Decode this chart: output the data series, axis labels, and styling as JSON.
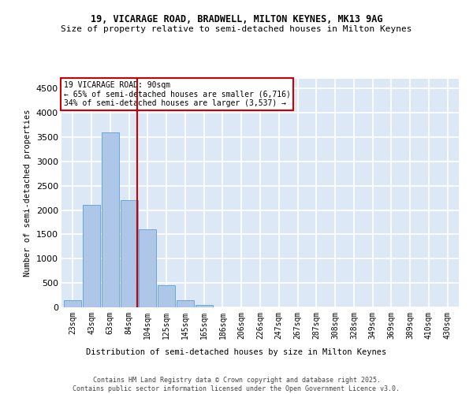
{
  "title1": "19, VICARAGE ROAD, BRADWELL, MILTON KEYNES, MK13 9AG",
  "title2": "Size of property relative to semi-detached houses in Milton Keynes",
  "xlabel": "Distribution of semi-detached houses by size in Milton Keynes",
  "ylabel": "Number of semi-detached properties",
  "footer": "Contains HM Land Registry data © Crown copyright and database right 2025.\nContains public sector information licensed under the Open Government Licence v3.0.",
  "bar_labels": [
    "23sqm",
    "43sqm",
    "63sqm",
    "84sqm",
    "104sqm",
    "125sqm",
    "145sqm",
    "165sqm",
    "186sqm",
    "206sqm",
    "226sqm",
    "247sqm",
    "267sqm",
    "287sqm",
    "308sqm",
    "328sqm",
    "349sqm",
    "369sqm",
    "389sqm",
    "410sqm",
    "430sqm"
  ],
  "bar_values": [
    150,
    2100,
    3600,
    2200,
    1600,
    450,
    150,
    50,
    0,
    0,
    0,
    0,
    0,
    0,
    0,
    0,
    0,
    0,
    0,
    0,
    0
  ],
  "bar_color": "#aec6e8",
  "bar_edge_color": "#5a9fd4",
  "background_color": "#dce8f5",
  "grid_color": "#ffffff",
  "vline_color": "#cc0000",
  "annotation_title": "19 VICARAGE ROAD: 90sqm",
  "annotation_line1": "← 65% of semi-detached houses are smaller (6,716)",
  "annotation_line2": "34% of semi-detached houses are larger (3,537) →",
  "annotation_box_color": "#cc0000",
  "ylim": [
    0,
    4700
  ],
  "yticks": [
    0,
    500,
    1000,
    1500,
    2000,
    2500,
    3000,
    3500,
    4000,
    4500
  ]
}
